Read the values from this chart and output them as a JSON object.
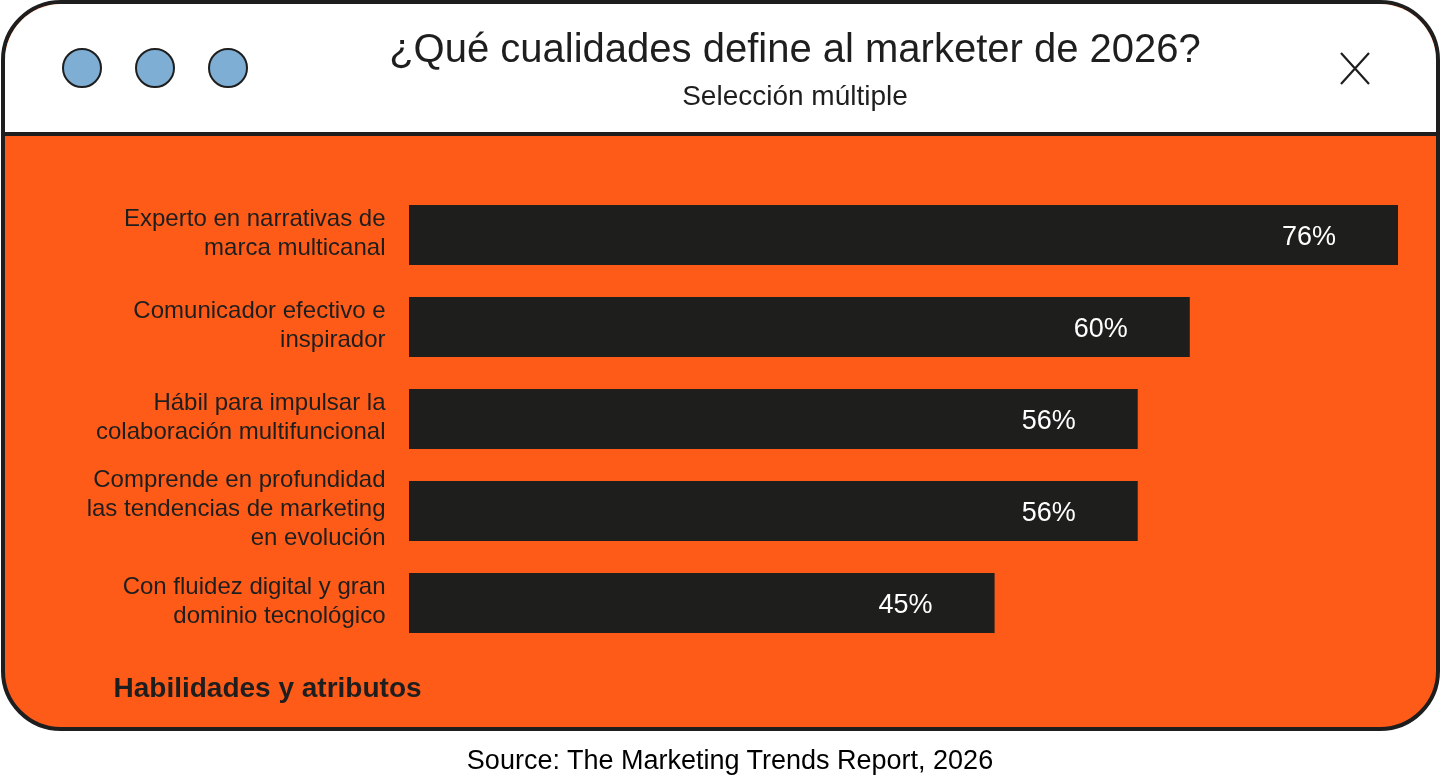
{
  "chart_data": {
    "type": "bar",
    "orientation": "horizontal",
    "title": "¿Qué cualidades define al marketer de 2026?",
    "subtitle": "Selección múltiple",
    "ylabel": "Habilidades y atributos",
    "categories": [
      "Experto en narrativas de marca multicanal",
      "Comunicador efectivo e inspirador",
      "Hábil para impulsar la colaboración multifuncional",
      "Comprende en profundidad las tendencias de marketing en evolución",
      "Con fluidez digital y gran dominio tecnológico"
    ],
    "values": [
      76,
      60,
      56,
      56,
      45
    ],
    "value_labels": [
      "76%",
      "60%",
      "56%",
      "56%",
      "45%"
    ],
    "color": "#1e1e1c",
    "annotations": [
      "Source: The Marketing Trends Report, 2026"
    ]
  }
}
